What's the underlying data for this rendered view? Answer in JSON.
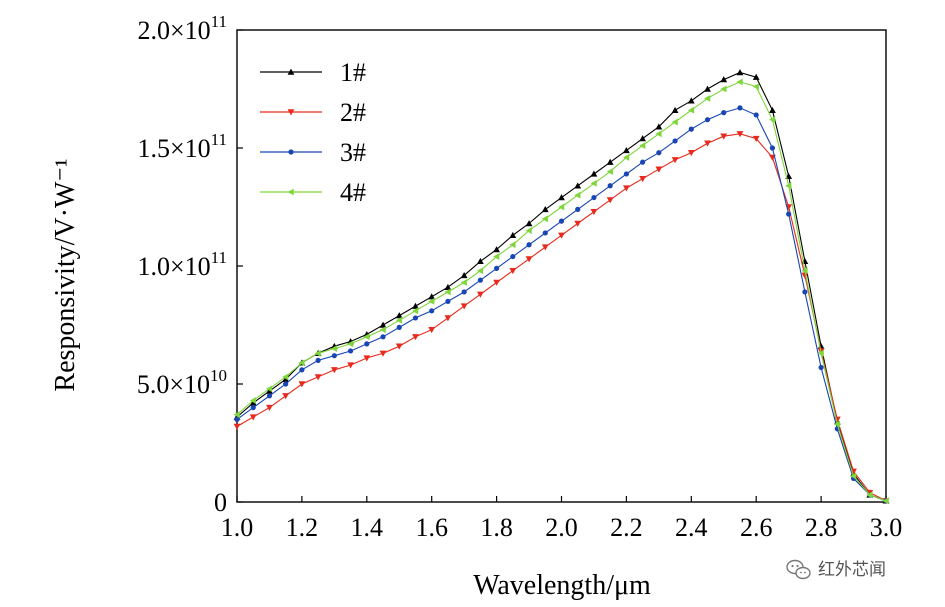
{
  "chart_data": {
    "type": "line",
    "title": "",
    "xlabel": "Wavelength/μm",
    "ylabel": "Responsivity/V·W⁻¹",
    "xlim": [
      1.0,
      3.0
    ],
    "ylim": [
      0,
      200000000000.0
    ],
    "x_ticks": [
      1.0,
      1.2,
      1.4,
      1.6,
      1.8,
      2.0,
      2.2,
      2.4,
      2.6,
      2.8,
      3.0
    ],
    "x_tick_labels": [
      "1.0",
      "1.2",
      "1.4",
      "1.6",
      "1.8",
      "2.0",
      "2.2",
      "2.4",
      "2.6",
      "2.8",
      "3.0"
    ],
    "y_ticks": [
      0,
      50000000000.0,
      100000000000.0,
      150000000000.0,
      200000000000.0
    ],
    "y_tick_labels": [
      {
        "mantissa": "0",
        "exponent": ""
      },
      {
        "mantissa": "5.0×10",
        "exponent": "10"
      },
      {
        "mantissa": "1.0×10",
        "exponent": "11"
      },
      {
        "mantissa": "1.5×10",
        "exponent": "11"
      },
      {
        "mantissa": "2.0×10",
        "exponent": "11"
      }
    ],
    "grid": false,
    "legend_position": "top-left",
    "x": [
      1.0,
      1.05,
      1.1,
      1.15,
      1.2,
      1.25,
      1.3,
      1.35,
      1.4,
      1.45,
      1.5,
      1.55,
      1.6,
      1.65,
      1.7,
      1.75,
      1.8,
      1.85,
      1.9,
      1.95,
      2.0,
      2.05,
      2.1,
      2.15,
      2.2,
      2.25,
      2.3,
      2.35,
      2.4,
      2.45,
      2.5,
      2.55,
      2.6,
      2.65,
      2.7,
      2.75,
      2.8,
      2.85,
      2.9,
      2.95,
      3.0
    ],
    "series": [
      {
        "name": "1#",
        "color": "#000000",
        "marker": "triangle-up",
        "values": [
          36000000000.0,
          42000000000.0,
          47000000000.0,
          52000000000.0,
          59000000000.0,
          63000000000.0,
          66000000000.0,
          68000000000.0,
          71000000000.0,
          75000000000.0,
          79000000000.0,
          83000000000.0,
          87000000000.0,
          91000000000.0,
          96000000000.0,
          102000000000.0,
          107000000000.0,
          113000000000.0,
          118000000000.0,
          124000000000.0,
          129000000000.0,
          134000000000.0,
          139000000000.0,
          144000000000.0,
          149000000000.0,
          154000000000.0,
          159000000000.0,
          166000000000.0,
          170000000000.0,
          175000000000.0,
          179000000000.0,
          182000000000.0,
          180000000000.0,
          166000000000.0,
          138000000000.0,
          102000000000.0,
          66000000000.0,
          34000000000.0,
          12000000000.0,
          3000000000.0,
          500000000.0
        ]
      },
      {
        "name": "2#",
        "color": "#e8291c",
        "marker": "triangle-down",
        "values": [
          32000000000.0,
          36000000000.0,
          40000000000.0,
          45000000000.0,
          50000000000.0,
          53000000000.0,
          56000000000.0,
          58000000000.0,
          61000000000.0,
          63000000000.0,
          66000000000.0,
          70000000000.0,
          73000000000.0,
          78000000000.0,
          83000000000.0,
          88000000000.0,
          93000000000.0,
          98000000000.0,
          103000000000.0,
          108000000000.0,
          113000000000.0,
          118000000000.0,
          123000000000.0,
          128000000000.0,
          133000000000.0,
          137000000000.0,
          141000000000.0,
          145000000000.0,
          148000000000.0,
          152000000000.0,
          155000000000.0,
          156000000000.0,
          154000000000.0,
          146000000000.0,
          125000000000.0,
          96000000000.0,
          64000000000.0,
          35000000000.0,
          13000000000.0,
          4000000000.0,
          500000000.0
        ]
      },
      {
        "name": "3#",
        "color": "#1846b4",
        "marker": "circle",
        "values": [
          35000000000.0,
          40000000000.0,
          45000000000.0,
          50000000000.0,
          56000000000.0,
          60000000000.0,
          62000000000.0,
          64000000000.0,
          67000000000.0,
          70000000000.0,
          74000000000.0,
          78000000000.0,
          81000000000.0,
          85000000000.0,
          89000000000.0,
          94000000000.0,
          99000000000.0,
          104000000000.0,
          109000000000.0,
          114000000000.0,
          119000000000.0,
          124000000000.0,
          129000000000.0,
          134000000000.0,
          139000000000.0,
          144000000000.0,
          148000000000.0,
          153000000000.0,
          158000000000.0,
          162000000000.0,
          165000000000.0,
          167000000000.0,
          164000000000.0,
          150000000000.0,
          122000000000.0,
          89000000000.0,
          57000000000.0,
          31000000000.0,
          10000000000.0,
          3000000000.0,
          500000000.0
        ]
      },
      {
        "name": "4#",
        "color": "#7ed63b",
        "marker": "triangle-left",
        "values": [
          37000000000.0,
          43000000000.0,
          48000000000.0,
          53000000000.0,
          59000000000.0,
          63000000000.0,
          65000000000.0,
          67000000000.0,
          70000000000.0,
          73000000000.0,
          77000000000.0,
          81000000000.0,
          85000000000.0,
          89000000000.0,
          93000000000.0,
          98000000000.0,
          104000000000.0,
          109000000000.0,
          115000000000.0,
          120000000000.0,
          125000000000.0,
          130000000000.0,
          135000000000.0,
          140000000000.0,
          146000000000.0,
          151000000000.0,
          156000000000.0,
          161000000000.0,
          166000000000.0,
          171000000000.0,
          175000000000.0,
          178000000000.0,
          176000000000.0,
          162000000000.0,
          134000000000.0,
          98000000000.0,
          63000000000.0,
          33000000000.0,
          11000000000.0,
          3000000000.0,
          500000000.0
        ]
      }
    ]
  },
  "watermark": {
    "text": "红外芯闻",
    "icon": "wechat-icon"
  }
}
